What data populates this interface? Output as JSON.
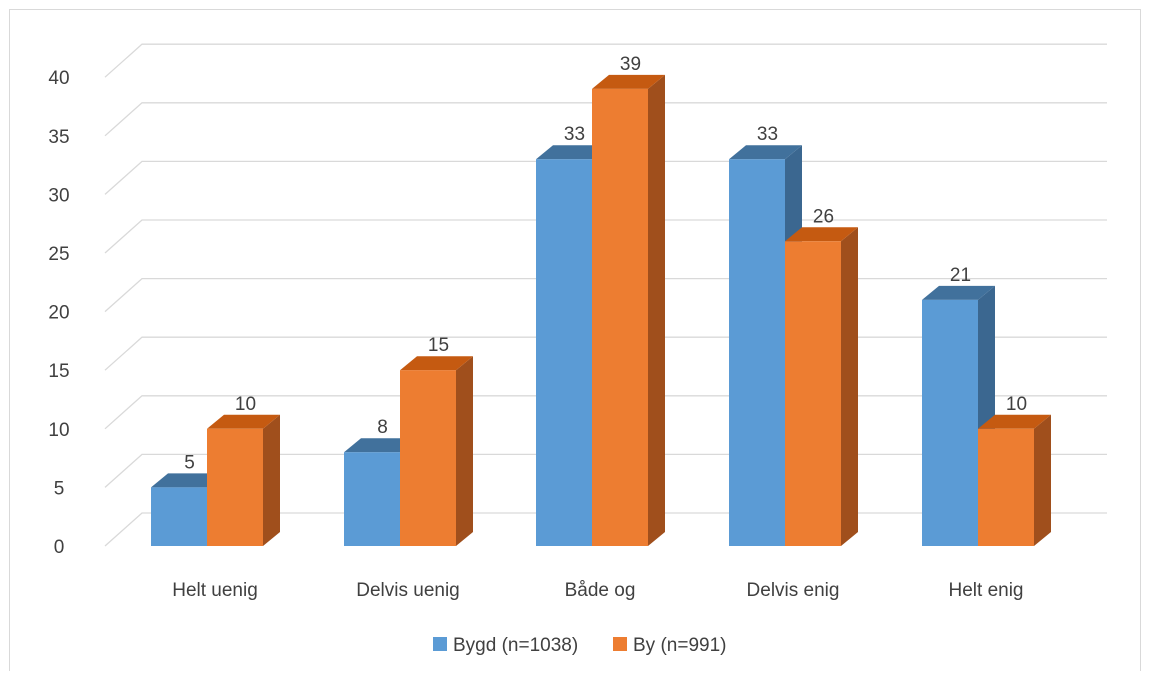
{
  "chart_data": {
    "type": "bar",
    "style": "3d-clustered-column",
    "categories": [
      "Helt uenig",
      "Delvis uenig",
      "Både og",
      "Delvis enig",
      "Helt enig"
    ],
    "series": [
      {
        "name": "Bygd (n=1038)",
        "values": [
          5,
          8,
          33,
          33,
          21
        ],
        "color": "#5b9bd5",
        "side_color": "#3b6790",
        "top_color": "#41719c"
      },
      {
        "name": "By (n=991)",
        "values": [
          10,
          15,
          39,
          26,
          10
        ],
        "color": "#ed7d31",
        "side_color": "#a04f1c",
        "top_color": "#c55a11"
      }
    ],
    "y_ticks": [
      "0",
      "5",
      "10",
      "15",
      "20",
      "25",
      "30",
      "35",
      "40"
    ],
    "ylim": [
      0,
      40
    ],
    "grid": true,
    "legend": "bottom",
    "title": "",
    "xlabel": "",
    "ylabel": ""
  }
}
